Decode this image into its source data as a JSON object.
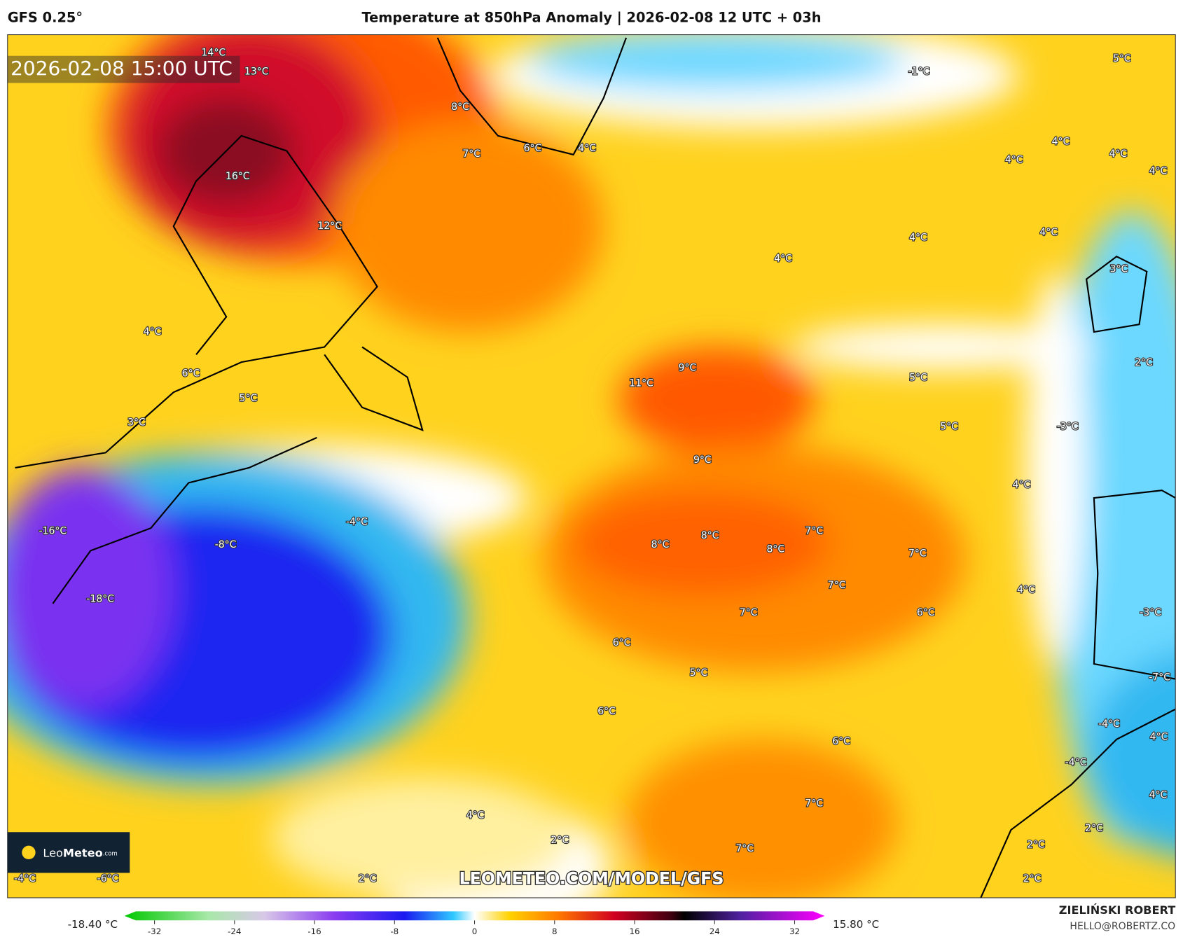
{
  "header": {
    "model": "GFS 0.25°",
    "title": "Temperature at 850hPa Anomaly | 2026-02-08 12 UTC + 03h"
  },
  "timestamp": "2026-02-08 15:00 UTC",
  "map": {
    "labels": [
      "14°C",
      "13°C",
      "8°C",
      "7°C",
      "6°C",
      "4°C",
      "-1°C",
      "5°C",
      "16°C",
      "12°C",
      "4°C",
      "4°C",
      "4°C",
      "4°C",
      "4°C",
      "4°C",
      "4°C",
      "3°C",
      "4°C",
      "6°C",
      "5°C",
      "3°C",
      "9°C",
      "11°C",
      "5°C",
      "2°C",
      "5°C",
      "-3°C",
      "9°C",
      "4°C",
      "-16°C",
      "-4°C",
      "-8°C",
      "8°C",
      "8°C",
      "8°C",
      "7°C",
      "7°C",
      "-18°C",
      "7°C",
      "4°C",
      "7°C",
      "6°C",
      "6°C",
      "5°C",
      "6°C",
      "6°C",
      "4°C",
      "7°C",
      "2°C",
      "7°C",
      "2°C",
      "2°C",
      "4°C",
      "-4°C",
      "-4°C",
      "4°C",
      "-7°C",
      "-3°C",
      "2°C",
      "2°C",
      "-4°C",
      "-6°C"
    ]
  },
  "watermark": "LEOMETEO.COM/MODEL/GFS",
  "logo": {
    "light": "Leo",
    "bold": "Meteo",
    "domain": ".com"
  },
  "colorbar": {
    "min_label": "-18.40 °C",
    "max_label": "15.80 °C",
    "range": [
      -35,
      35
    ],
    "ticks": [
      -32,
      -24,
      -16,
      -8,
      0,
      8,
      16,
      24,
      32
    ]
  },
  "credit": {
    "name": "ZIELIŃSKI ROBERT",
    "email": "HELLO@ROBERTZ.CO"
  }
}
